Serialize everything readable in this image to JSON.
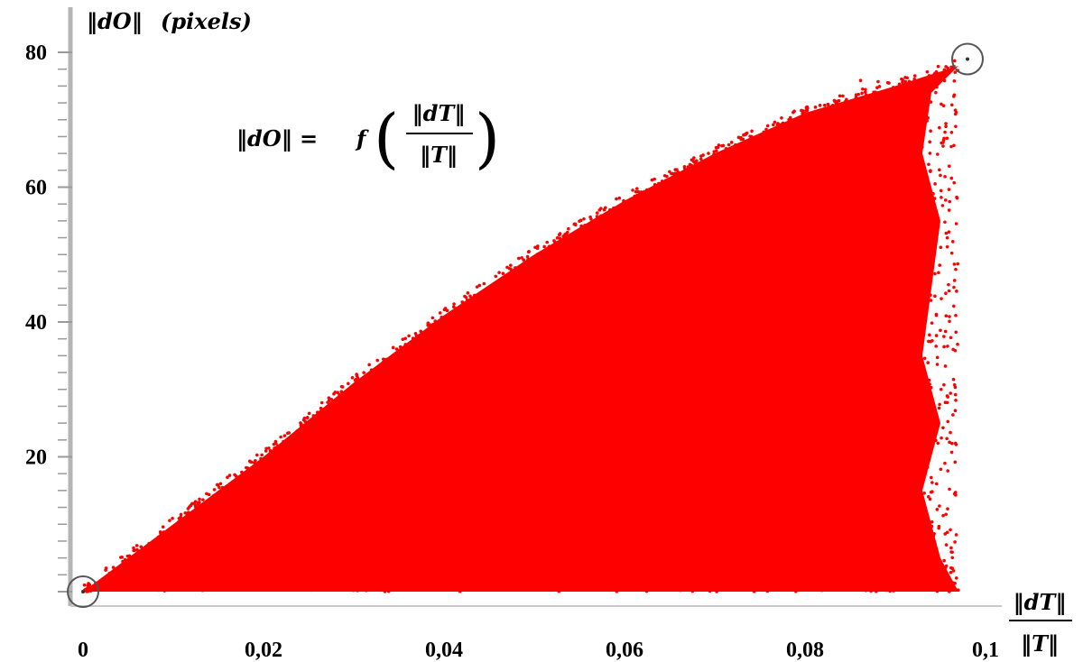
{
  "chart_data": {
    "type": "scatter",
    "y_axis_title_main": "‖dO‖",
    "y_axis_title_unit": "(pixels)",
    "x_axis_title_top": "‖dT‖",
    "x_axis_title_bottom": "‖T‖",
    "annotation": {
      "lhs": "‖dO‖ = ",
      "func": "f",
      "numerator": "‖dT‖",
      "denominator": "‖T‖"
    },
    "xlim": [
      0,
      0.1
    ],
    "ylim": [
      0,
      80
    ],
    "x_ticks": [
      {
        "value": 0,
        "label": "0"
      },
      {
        "value": 0.02,
        "label": "0,02"
      },
      {
        "value": 0.04,
        "label": "0,04"
      },
      {
        "value": 0.06,
        "label": "0,06"
      },
      {
        "value": 0.08,
        "label": "0,08"
      },
      {
        "value": 0.1,
        "label": "0,1"
      }
    ],
    "y_ticks": [
      {
        "value": 20,
        "label": "20"
      },
      {
        "value": 40,
        "label": "40"
      },
      {
        "value": 60,
        "label": "60"
      },
      {
        "value": 80,
        "label": "80"
      }
    ],
    "series": [
      {
        "color": "#ff0000",
        "envelope_upper": [
          {
            "x": 0.0,
            "y": 0
          },
          {
            "x": 0.005,
            "y": 5
          },
          {
            "x": 0.01,
            "y": 10
          },
          {
            "x": 0.02,
            "y": 20
          },
          {
            "x": 0.03,
            "y": 31
          },
          {
            "x": 0.04,
            "y": 41
          },
          {
            "x": 0.05,
            "y": 50
          },
          {
            "x": 0.06,
            "y": 58
          },
          {
            "x": 0.07,
            "y": 65
          },
          {
            "x": 0.08,
            "y": 71
          },
          {
            "x": 0.09,
            "y": 75
          },
          {
            "x": 0.097,
            "y": 78
          }
        ],
        "envelope_lower": 0,
        "envelope_right": [
          {
            "x": 0.097,
            "y": 78
          },
          {
            "x": 0.094,
            "y": 74
          },
          {
            "x": 0.093,
            "y": 65
          },
          {
            "x": 0.095,
            "y": 55
          },
          {
            "x": 0.094,
            "y": 45
          },
          {
            "x": 0.093,
            "y": 35
          },
          {
            "x": 0.095,
            "y": 25
          },
          {
            "x": 0.093,
            "y": 15
          },
          {
            "x": 0.095,
            "y": 5
          },
          {
            "x": 0.097,
            "y": 0
          }
        ]
      }
    ],
    "highlighted_points": [
      {
        "x": 0.0,
        "y": 0
      },
      {
        "x": 0.098,
        "y": 79
      }
    ]
  }
}
